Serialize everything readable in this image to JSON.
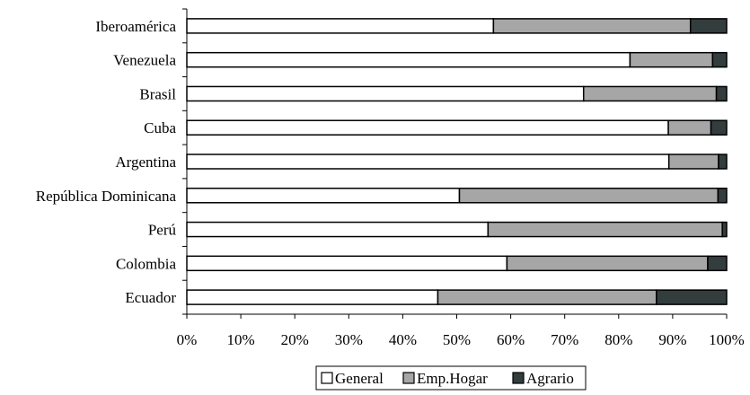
{
  "chart_data": {
    "type": "bar",
    "orientation": "horizontal",
    "stacked": true,
    "percent": true,
    "categories": [
      "Ecuador",
      "Colombia",
      "Perú",
      "República Dominicana",
      "Argentina",
      "Cuba",
      "Brasil",
      "Venezuela",
      "Iberoamérica"
    ],
    "series": [
      {
        "name": "General",
        "color": "#ffffff",
        "values": [
          46.5,
          59.3,
          55.8,
          50.5,
          89.3,
          89.2,
          73.5,
          82.1,
          56.8
        ]
      },
      {
        "name": "Emp.Hogar",
        "color": "#a6a6a6",
        "values": [
          40.5,
          37.2,
          43.4,
          47.9,
          9.2,
          7.9,
          24.6,
          15.3,
          36.5
        ]
      },
      {
        "name": "Agrario",
        "color": "#333d3d",
        "values": [
          13.0,
          3.5,
          0.8,
          1.6,
          1.5,
          2.9,
          1.9,
          2.6,
          6.7
        ]
      }
    ],
    "xticks": [
      "0%",
      "10%",
      "20%",
      "30%",
      "40%",
      "50%",
      "60%",
      "70%",
      "80%",
      "90%",
      "100%"
    ],
    "xlim": [
      0,
      100
    ],
    "title": "",
    "xlabel": "",
    "ylabel": "",
    "grid": false,
    "legend_position": "bottom"
  }
}
